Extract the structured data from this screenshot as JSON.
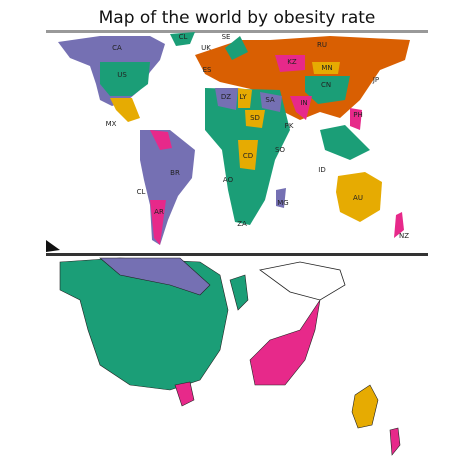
{
  "title": "Map of the world by obesity rate",
  "top_map": {
    "labels": [
      "CL",
      "SE",
      "UK",
      "RU",
      "ES",
      "KZ",
      "MN",
      "JP",
      "CA",
      "US",
      "CN",
      "DZ",
      "LY",
      "SA",
      "IN",
      "MX",
      "PK",
      "PH",
      "SD",
      "CD",
      "SO",
      "ID",
      "BR",
      "AO",
      "CL",
      "MG",
      "AR",
      "AU",
      "ZA",
      "NZ"
    ]
  }
}
